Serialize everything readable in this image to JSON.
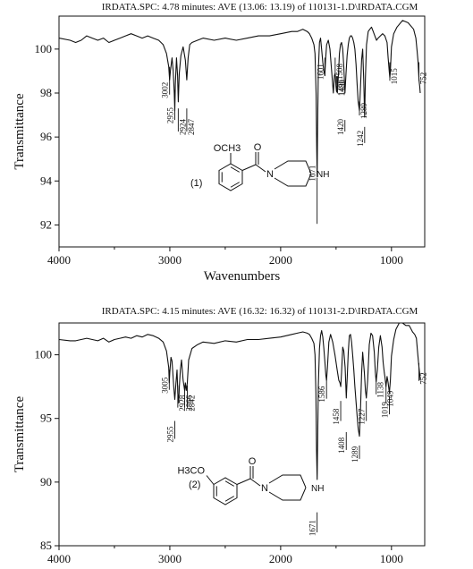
{
  "chart_data": [
    {
      "type": "line",
      "title": "IRDATA.SPC: 4.78 minutes: AVE (13.06: 13.19) of 110131-1.D\\IRDATA.CGM",
      "xlabel": "Wavenumbers",
      "ylabel": "Transmittance",
      "xlim": [
        4000,
        700
      ],
      "x_reversed": true,
      "ylim": [
        91,
        101.5
      ],
      "xticks": [
        4000,
        3000,
        2000,
        1000
      ],
      "yticks": [
        92,
        94,
        96,
        98,
        100
      ],
      "compound_label": "(1)",
      "structure": {
        "substituent": "OCH3",
        "carbonyl": "O",
        "amine_n": "N",
        "amine_nh": "NH"
      },
      "series": [
        {
          "x": [
            4000,
            3900,
            3850,
            3800,
            3750,
            3700,
            3650,
            3600,
            3550,
            3500,
            3450,
            3400,
            3350,
            3300,
            3250,
            3200,
            3150,
            3100,
            3060,
            3030,
            3010,
            3002,
            2995,
            2980,
            2970,
            2960,
            2955,
            2950,
            2940,
            2930,
            2924,
            2915,
            2900,
            2880,
            2860,
            2847,
            2835,
            2820,
            2800,
            2750,
            2700,
            2600,
            2500,
            2400,
            2300,
            2200,
            2100,
            2000,
            1900,
            1850,
            1800,
            1760,
            1740,
            1720,
            1700,
            1690,
            1680,
            1675,
            1671,
            1667,
            1660,
            1650,
            1640,
            1630,
            1620,
            1610,
            1601,
            1595,
            1585,
            1570,
            1555,
            1540,
            1525,
            1515,
            1508,
            1500,
            1496,
            1490,
            1488,
            1484,
            1478,
            1470,
            1460,
            1450,
            1440,
            1430,
            1420,
            1410,
            1400,
            1390,
            1380,
            1370,
            1360,
            1350,
            1340,
            1330,
            1320,
            1310,
            1300,
            1289,
            1280,
            1270,
            1260,
            1250,
            1242,
            1235,
            1225,
            1210,
            1195,
            1180,
            1165,
            1150,
            1135,
            1120,
            1100,
            1080,
            1060,
            1040,
            1030,
            1020,
            1015,
            1010,
            1000,
            980,
            950,
            900,
            850,
            800,
            780,
            770,
            760,
            752,
            745,
            740
          ],
          "y": [
            100.5,
            100.4,
            100.3,
            100.4,
            100.6,
            100.5,
            100.4,
            100.5,
            100.3,
            100.4,
            100.5,
            100.6,
            100.7,
            100.6,
            100.5,
            100.6,
            100.5,
            100.4,
            100.2,
            99.8,
            99.2,
            98.6,
            99.0,
            99.6,
            99.0,
            98.0,
            97.2,
            98.4,
            99.6,
            98.8,
            97.6,
            98.9,
            99.7,
            100.1,
            99.5,
            98.6,
            99.6,
            100.2,
            100.3,
            100.4,
            100.5,
            100.4,
            100.5,
            100.4,
            100.5,
            100.6,
            100.6,
            100.7,
            100.8,
            100.8,
            100.9,
            100.8,
            100.7,
            100.5,
            100.2,
            99.8,
            98.0,
            95.5,
            94.2,
            96.5,
            99.0,
            100.3,
            100.5,
            100.0,
            99.4,
            99.0,
            98.8,
            99.5,
            100.2,
            100.4,
            100.0,
            99.0,
            98.0,
            98.8,
            98.9,
            98.3,
            98.1,
            98.3,
            98.0,
            98.4,
            98.9,
            99.8,
            100.2,
            100.3,
            100.0,
            99.2,
            98.0,
            98.9,
            99.7,
            100.2,
            100.5,
            100.6,
            100.6,
            100.5,
            100.3,
            100.0,
            99.3,
            98.4,
            97.6,
            97.2,
            98.2,
            99.5,
            100.0,
            98.6,
            96.9,
            98.7,
            100.2,
            100.8,
            100.9,
            101.0,
            100.8,
            100.6,
            100.4,
            100.5,
            100.6,
            100.7,
            100.6,
            100.3,
            99.6,
            99.0,
            98.7,
            99.0,
            100.1,
            100.7,
            101.0,
            101.3,
            101.2,
            100.9,
            100.5,
            100.0,
            99.4,
            98.6,
            98.3,
            98.0
          ]
        }
      ],
      "annotations": [
        "3002",
        "2955",
        "2924",
        "2847",
        "1671",
        "1601",
        "1508",
        "1496",
        "1488",
        "1420",
        "1289",
        "1242",
        "1015",
        "752"
      ]
    },
    {
      "type": "line",
      "title": "IRDATA.SPC: 4.15 minutes: AVE (16.32: 16.32) of 110131-2.D\\IRDATA.CGM",
      "xlabel": "",
      "ylabel": "Transmittance",
      "xlim": [
        4000,
        700
      ],
      "x_reversed": true,
      "ylim": [
        85,
        102.5
      ],
      "xticks": [
        4000,
        3000,
        2000,
        1000
      ],
      "yticks": [
        85,
        90,
        95,
        100
      ],
      "compound_label": "(2)",
      "structure": {
        "substituent": "H3CO",
        "carbonyl": "O",
        "amine_n": "N",
        "amine_nh": "NH"
      },
      "series": [
        {
          "x": [
            4000,
            3900,
            3850,
            3800,
            3750,
            3700,
            3650,
            3600,
            3550,
            3500,
            3450,
            3400,
            3350,
            3300,
            3250,
            3200,
            3150,
            3100,
            3060,
            3030,
            3010,
            3005,
            3000,
            2990,
            2980,
            2965,
            2955,
            2945,
            2935,
            2928,
            2920,
            2915,
            2905,
            2895,
            2880,
            2866,
            2860,
            2852,
            2842,
            2830,
            2800,
            2750,
            2700,
            2600,
            2500,
            2400,
            2300,
            2200,
            2100,
            2000,
            1900,
            1850,
            1800,
            1760,
            1740,
            1720,
            1700,
            1690,
            1682,
            1676,
            1671,
            1666,
            1660,
            1650,
            1640,
            1630,
            1620,
            1610,
            1600,
            1592,
            1586,
            1578,
            1565,
            1550,
            1530,
            1510,
            1490,
            1475,
            1465,
            1458,
            1450,
            1440,
            1430,
            1418,
            1408,
            1398,
            1390,
            1380,
            1370,
            1360,
            1350,
            1340,
            1330,
            1320,
            1310,
            1300,
            1289,
            1280,
            1270,
            1260,
            1245,
            1235,
            1227,
            1215,
            1200,
            1185,
            1170,
            1155,
            1145,
            1138,
            1128,
            1115,
            1100,
            1085,
            1075,
            1065,
            1058,
            1049,
            1040,
            1030,
            1019,
            1010,
            1000,
            980,
            960,
            930,
            900,
            870,
            840,
            810,
            790,
            775,
            765,
            752,
            745,
            740
          ],
          "y": [
            101.2,
            101.1,
            101.1,
            101.2,
            101.3,
            101.2,
            101.1,
            101.3,
            101.0,
            101.2,
            101.3,
            101.4,
            101.3,
            101.5,
            101.4,
            101.6,
            101.5,
            101.3,
            101.0,
            100.3,
            99.0,
            97.8,
            98.6,
            99.8,
            99.5,
            97.5,
            96.5,
            97.8,
            98.8,
            97.0,
            96.2,
            97.4,
            98.8,
            99.6,
            98.0,
            97.2,
            97.8,
            97.2,
            97.8,
            99.6,
            100.5,
            100.8,
            101.0,
            100.9,
            101.1,
            101.0,
            101.2,
            101.2,
            101.3,
            101.4,
            101.6,
            101.7,
            101.8,
            101.7,
            101.6,
            101.3,
            100.9,
            100.0,
            97.0,
            92.5,
            90.2,
            93.5,
            97.5,
            100.5,
            101.5,
            101.9,
            101.4,
            100.5,
            99.3,
            98.4,
            98.0,
            99.0,
            101.0,
            101.6,
            101.0,
            100.0,
            98.8,
            98.0,
            97.8,
            97.5,
            98.6,
            100.6,
            100.3,
            99.0,
            96.6,
            98.5,
            100.2,
            101.5,
            101.6,
            101.0,
            100.0,
            98.8,
            97.5,
            96.3,
            95.2,
            94.2,
            93.6,
            95.5,
            98.5,
            100.2,
            98.6,
            97.2,
            96.6,
            98.0,
            100.8,
            101.7,
            101.5,
            100.2,
            98.6,
            97.9,
            98.8,
            100.6,
            101.5,
            100.6,
            99.4,
            98.6,
            98.2,
            97.5,
            98.3,
            97.8,
            97.0,
            98.0,
            99.9,
            101.2,
            102.0,
            102.5,
            102.5,
            102.3,
            102.3,
            101.8,
            101.6,
            101.3,
            100.3,
            99.0,
            98.5,
            98.0
          ]
        }
      ],
      "annotations": [
        "3005",
        "2955",
        "2928",
        "2866",
        "2842",
        "1671",
        "1586",
        "1458",
        "1408",
        "1289",
        "1227",
        "1138",
        "1049",
        "1019",
        "752"
      ]
    }
  ]
}
